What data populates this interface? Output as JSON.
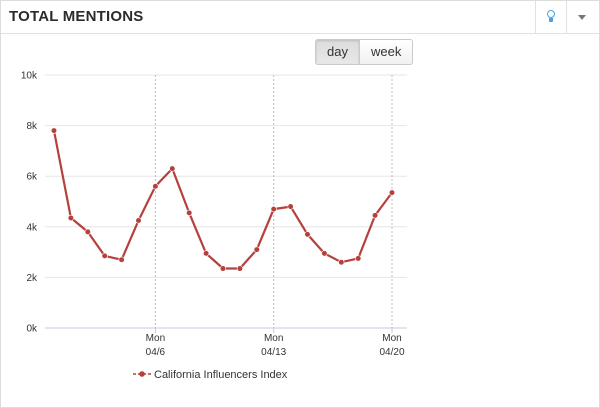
{
  "widget": {
    "title": "TOTAL MENTIONS",
    "icons": [
      "lightbulb-icon",
      "chevron-down-icon"
    ]
  },
  "toggle": {
    "options": [
      "day",
      "week"
    ],
    "selected": "day"
  },
  "colors": {
    "series": "#b5403c",
    "grid": "#e6e6e6",
    "accent": "#4aa3df"
  },
  "chart_data": {
    "type": "line",
    "title": "",
    "xlabel": "",
    "ylabel": "",
    "x_unit": "day",
    "ylim": [
      0,
      10000
    ],
    "y_ticks": [
      0,
      2000,
      4000,
      6000,
      8000,
      10000
    ],
    "y_tick_labels": [
      "0k",
      "2k",
      "4k",
      "6k",
      "8k",
      "10k"
    ],
    "x_ticks": [
      {
        "line1": "Mon",
        "line2": "04/6",
        "index": 6
      },
      {
        "line1": "Mon",
        "line2": "04/13",
        "index": 13
      },
      {
        "line1": "Mon",
        "line2": "04/20",
        "index": 20
      }
    ],
    "grid": true,
    "legend_position": "bottom",
    "series": [
      {
        "name": "California Influencers Index",
        "color": "#b5403c",
        "values": [
          7800,
          4350,
          3800,
          2850,
          2700,
          4250,
          5600,
          6300,
          4550,
          2950,
          2350,
          2350,
          3100,
          4700,
          4800,
          3700,
          2950,
          2600,
          2750,
          4450,
          5350
        ]
      }
    ]
  }
}
